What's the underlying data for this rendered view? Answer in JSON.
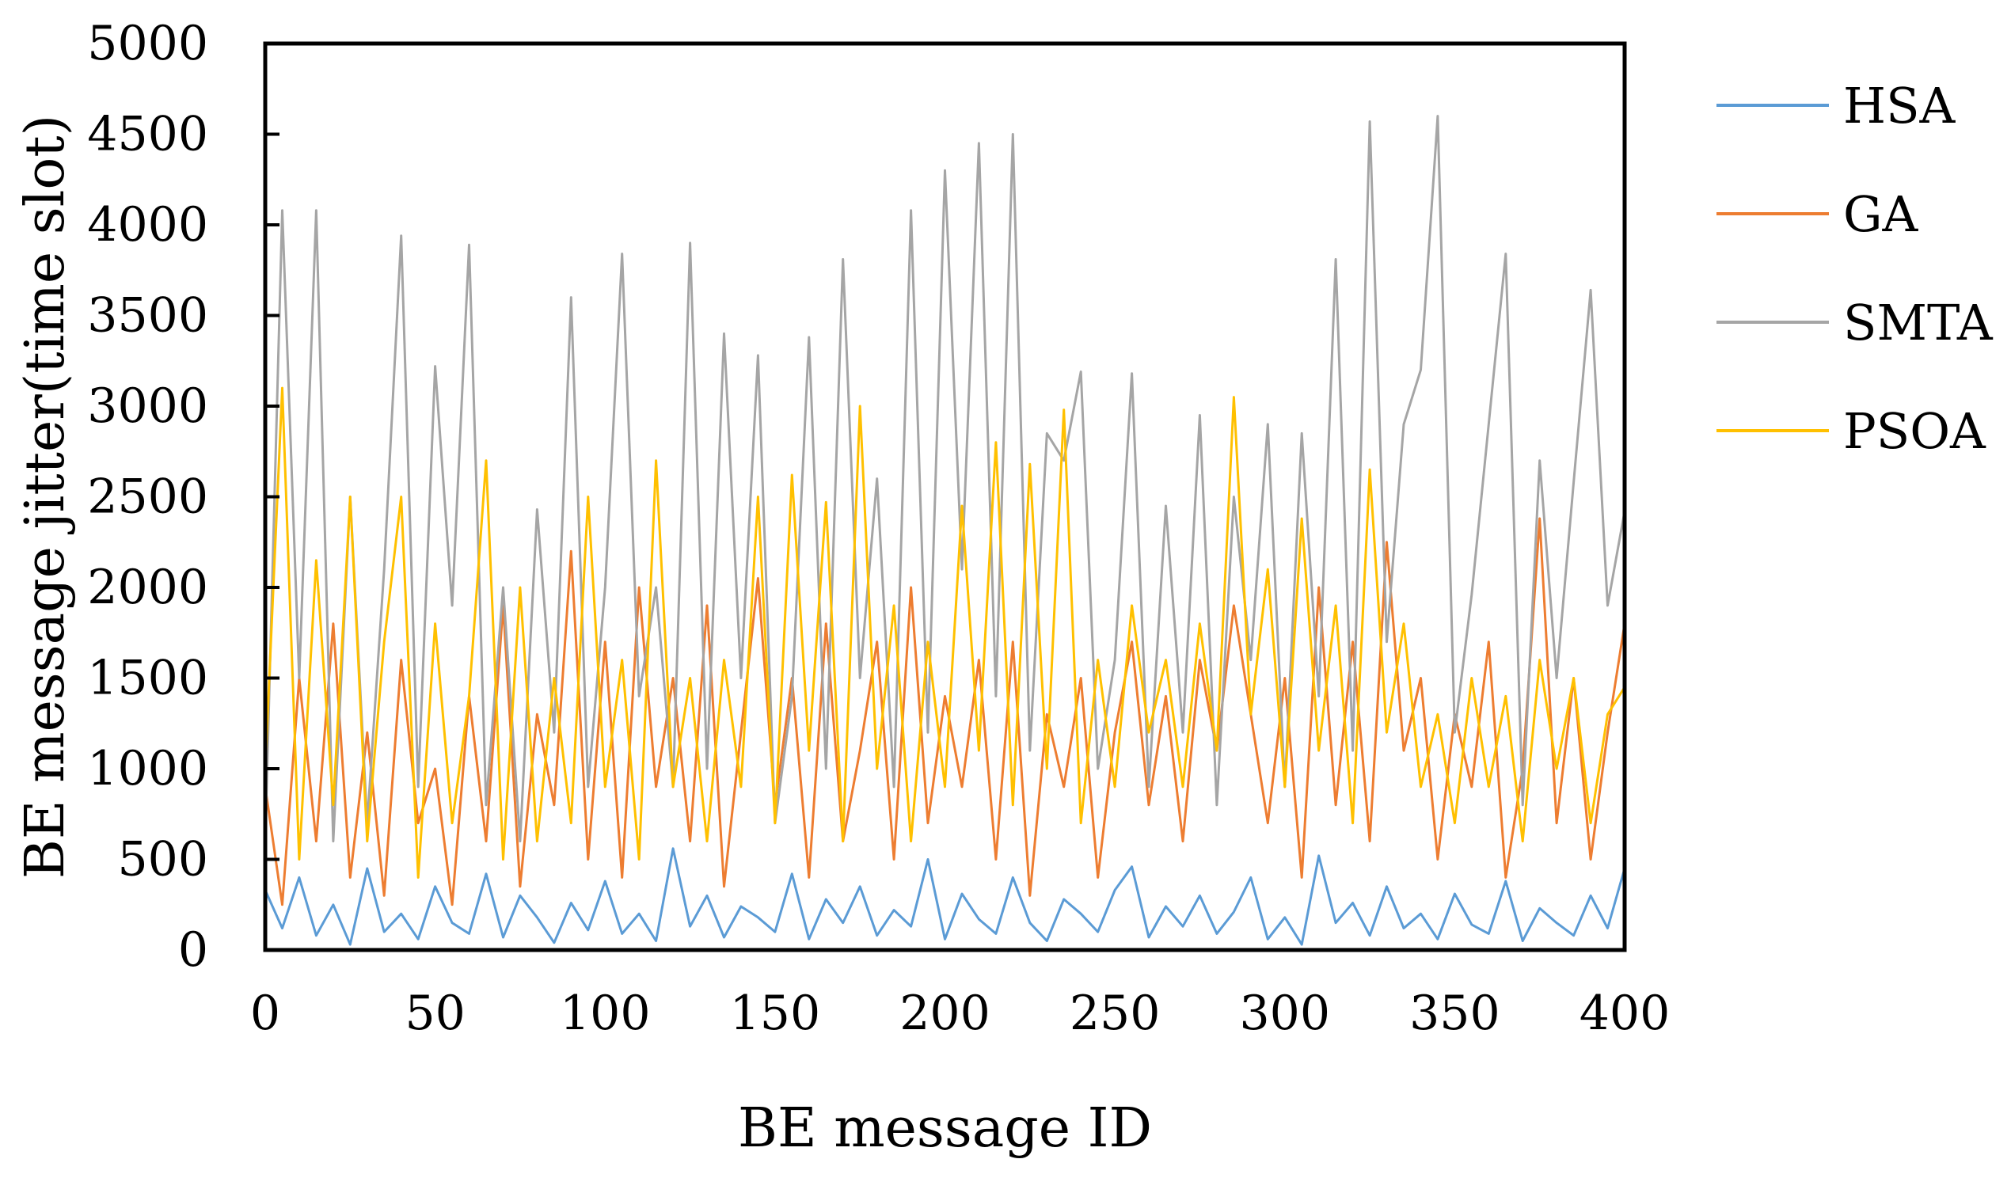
{
  "chart_data": {
    "type": "line",
    "title": "",
    "xlabel": "BE message ID",
    "ylabel": "BE message jitter(time slot)",
    "xlim": [
      0,
      400
    ],
    "ylim": [
      0,
      5000
    ],
    "x_ticks": [
      "0",
      "50",
      "100",
      "150",
      "200",
      "250",
      "300",
      "350",
      "400"
    ],
    "y_ticks": [
      "0",
      "500",
      "1000",
      "1500",
      "2000",
      "2500",
      "3000",
      "3500",
      "4000",
      "4500",
      "5000"
    ],
    "grid": false,
    "legend_position": "right",
    "x": [
      0,
      5,
      10,
      15,
      20,
      25,
      30,
      35,
      40,
      45,
      50,
      55,
      60,
      65,
      70,
      75,
      80,
      85,
      90,
      95,
      100,
      105,
      110,
      115,
      120,
      125,
      130,
      135,
      140,
      145,
      150,
      155,
      160,
      165,
      170,
      175,
      180,
      185,
      190,
      195,
      200,
      205,
      210,
      215,
      220,
      225,
      230,
      235,
      240,
      245,
      250,
      255,
      260,
      265,
      270,
      275,
      280,
      285,
      290,
      295,
      300,
      305,
      310,
      315,
      320,
      325,
      330,
      335,
      340,
      345,
      350,
      355,
      360,
      365,
      370,
      375,
      380,
      385,
      390,
      395,
      400
    ],
    "series": [
      {
        "name": "HSA",
        "color": "#5B9BD5",
        "values": [
          330,
          120,
          400,
          80,
          250,
          30,
          450,
          100,
          200,
          60,
          350,
          150,
          90,
          420,
          70,
          300,
          180,
          40,
          260,
          110,
          380,
          90,
          200,
          50,
          560,
          130,
          300,
          70,
          240,
          180,
          100,
          420,
          60,
          280,
          150,
          350,
          80,
          220,
          130,
          500,
          60,
          310,
          170,
          90,
          400,
          150,
          50,
          280,
          200,
          100,
          330,
          460,
          70,
          240,
          130,
          300,
          90,
          210,
          400,
          60,
          180,
          30,
          520,
          150,
          260,
          80,
          350,
          120,
          200,
          60,
          310,
          140,
          90,
          380,
          50,
          230,
          150,
          80,
          300,
          120,
          450
        ]
      },
      {
        "name": "GA",
        "color": "#ED7D31",
        "values": [
          900,
          250,
          1500,
          600,
          1800,
          400,
          1200,
          300,
          1600,
          700,
          1000,
          250,
          1400,
          600,
          1900,
          350,
          1300,
          800,
          2200,
          500,
          1700,
          400,
          2000,
          900,
          1500,
          600,
          1900,
          350,
          1200,
          2050,
          800,
          1500,
          400,
          1800,
          600,
          1100,
          1700,
          500,
          2000,
          700,
          1400,
          900,
          1600,
          500,
          1700,
          300,
          1300,
          900,
          1500,
          400,
          1200,
          1700,
          800,
          1400,
          600,
          1600,
          1100,
          1900,
          1300,
          700,
          1500,
          400,
          2000,
          800,
          1700,
          600,
          2250,
          1100,
          1500,
          500,
          1300,
          900,
          1700,
          400,
          1000,
          2380,
          700,
          1500,
          500,
          1200,
          1800
        ]
      },
      {
        "name": "SMTA",
        "color": "#A5A5A5",
        "values": [
          600,
          4080,
          1500,
          4080,
          600,
          2500,
          700,
          2100,
          3940,
          900,
          3220,
          1900,
          3890,
          800,
          2000,
          600,
          2430,
          1200,
          3600,
          900,
          2000,
          3840,
          1400,
          2000,
          900,
          3900,
          1000,
          3400,
          1500,
          3280,
          700,
          1400,
          3380,
          1000,
          3810,
          1500,
          2600,
          900,
          4080,
          1200,
          4300,
          2100,
          4450,
          1400,
          4500,
          1100,
          2850,
          2700,
          3190,
          1000,
          1600,
          3180,
          900,
          2450,
          1200,
          2950,
          800,
          2500,
          1600,
          2900,
          900,
          2850,
          1400,
          3810,
          1100,
          4570,
          1700,
          2900,
          3200,
          4600,
          1200,
          1960,
          2900,
          3840,
          800,
          2700,
          1500,
          2580,
          3640,
          1900,
          2420
        ]
      },
      {
        "name": "PSOA",
        "color": "#FFC000",
        "values": [
          1000,
          3100,
          500,
          2150,
          800,
          2500,
          600,
          1700,
          2500,
          400,
          1800,
          700,
          1400,
          2700,
          500,
          2000,
          600,
          1500,
          700,
          2500,
          900,
          1600,
          500,
          2700,
          900,
          1500,
          600,
          1600,
          900,
          2500,
          700,
          2620,
          1100,
          2470,
          600,
          3000,
          1000,
          1900,
          600,
          1700,
          900,
          2450,
          1100,
          2800,
          800,
          2680,
          1000,
          2980,
          700,
          1600,
          900,
          1900,
          1200,
          1600,
          900,
          1800,
          1100,
          3050,
          1300,
          2100,
          900,
          2380,
          1100,
          1900,
          700,
          2650,
          1200,
          1800,
          900,
          1300,
          700,
          1500,
          900,
          1400,
          600,
          1600,
          1000,
          1500,
          700,
          1300,
          1450
        ]
      }
    ]
  }
}
